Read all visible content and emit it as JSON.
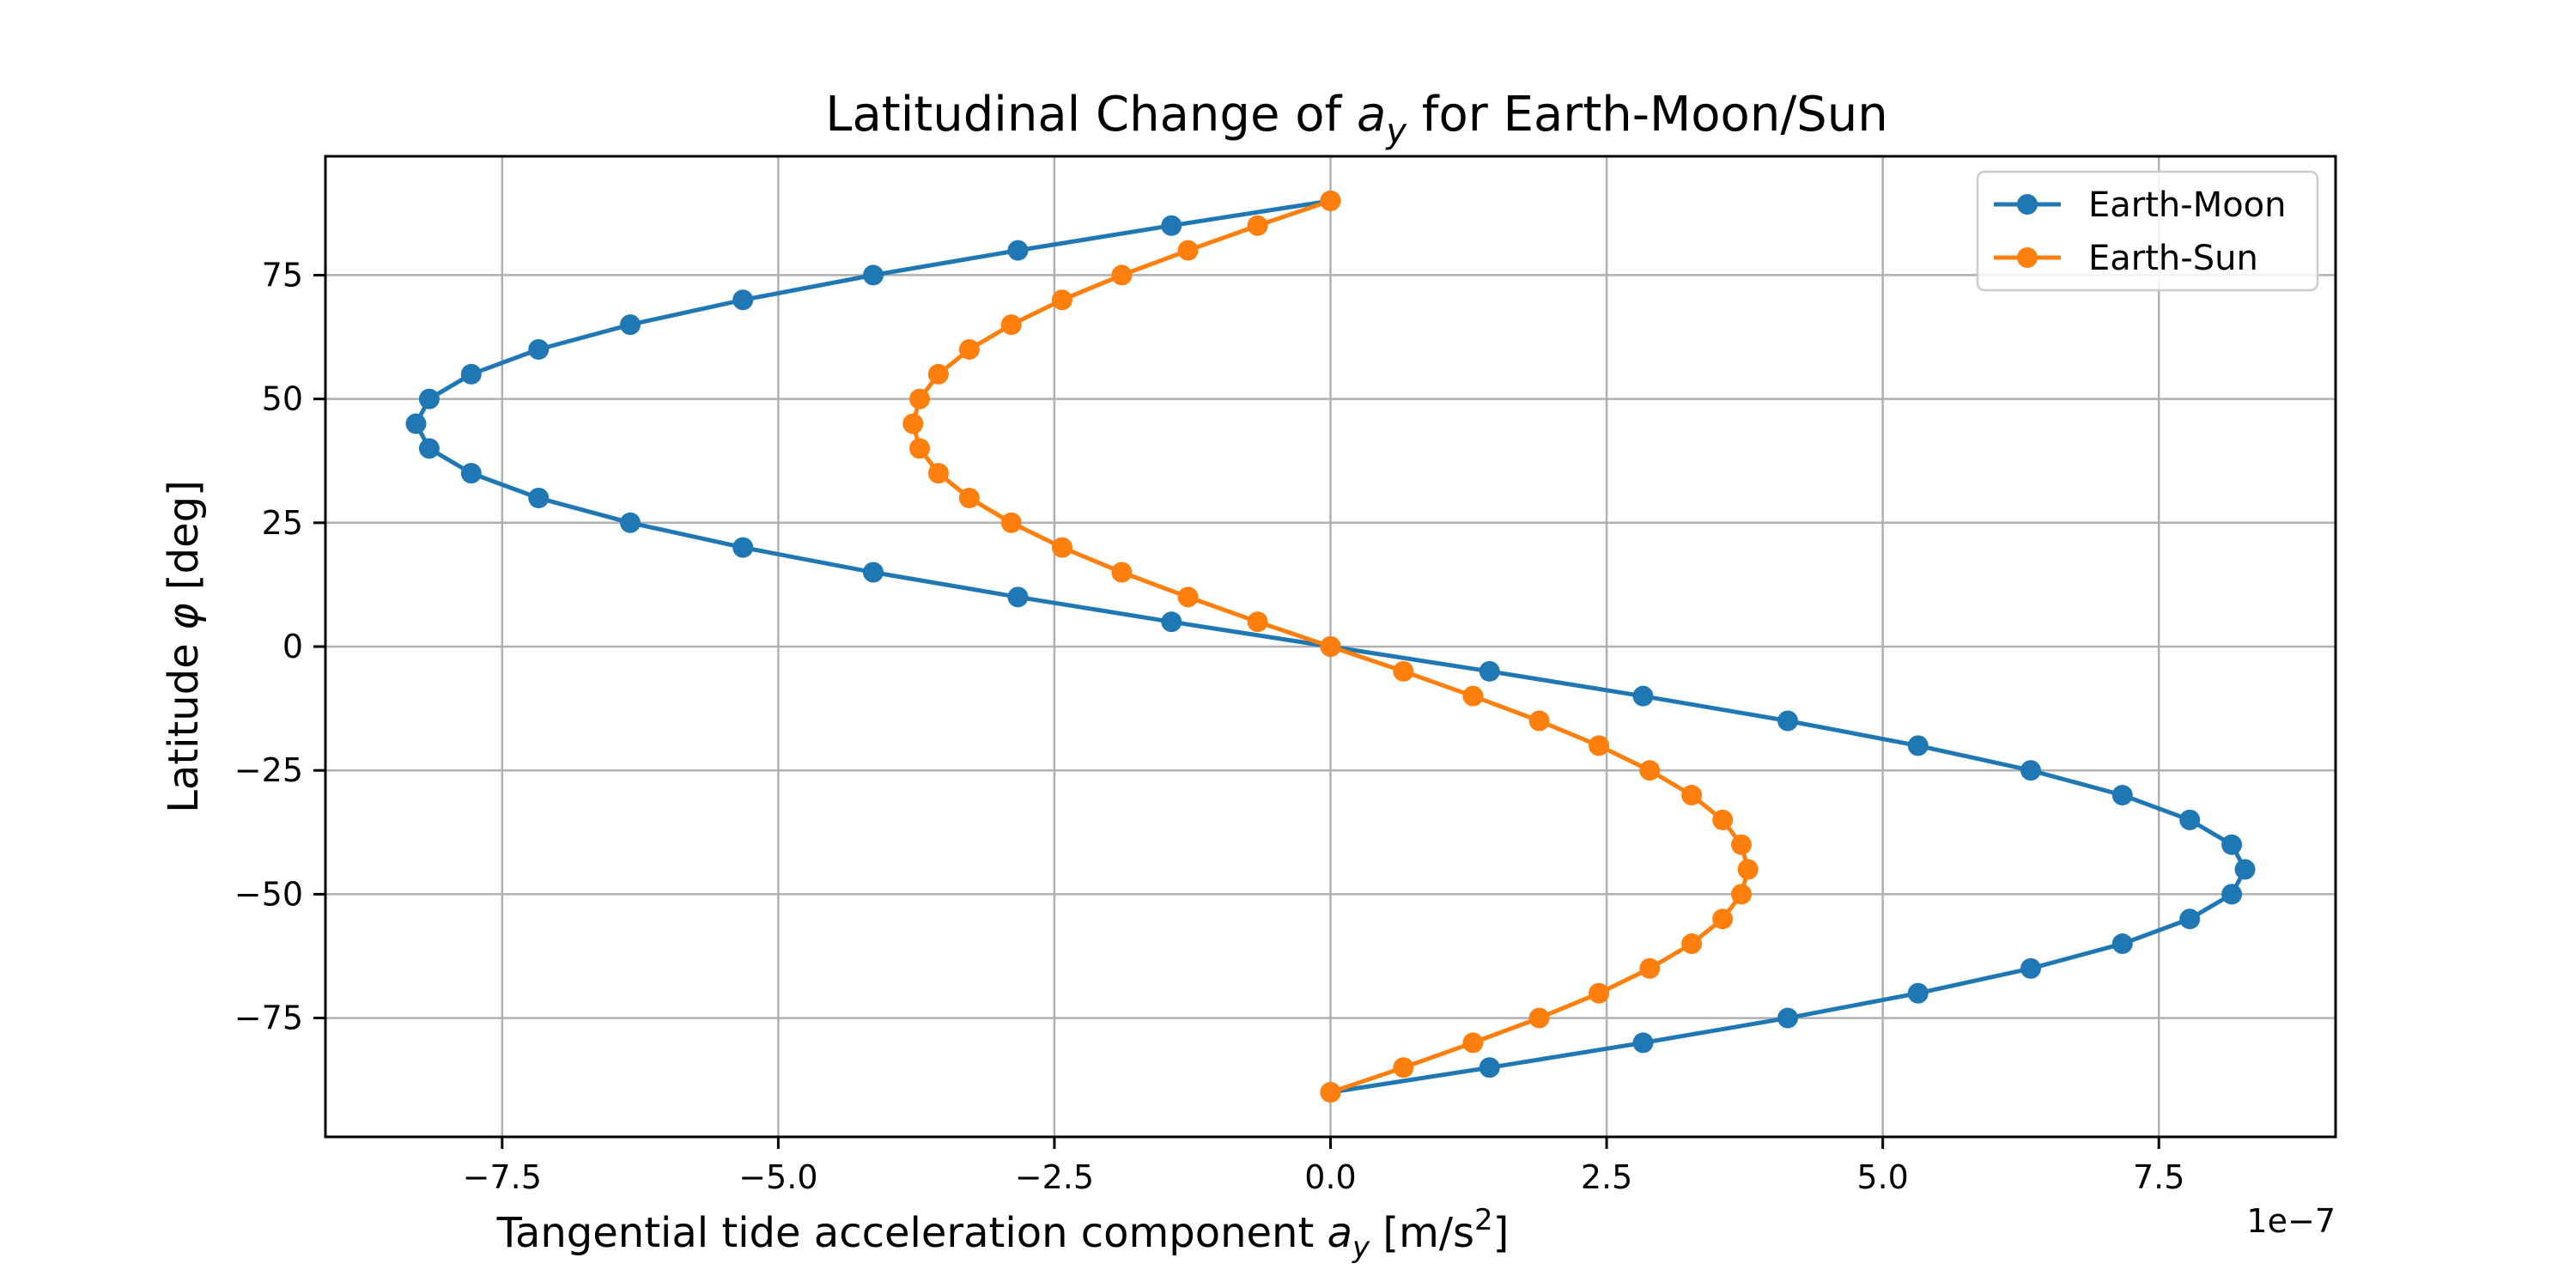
{
  "chart_data": {
    "type": "line",
    "title_text": "Latitudinal Change of ",
    "title_var": "a",
    "title_sub": "y",
    "title_tail": " for Earth-Moon/Sun",
    "xlabel_text": "Tangential tide acceleration component ",
    "xlabel_var": "a",
    "xlabel_sub": "y",
    "xlabel_unit": " [m/s",
    "xlabel_sup": "2",
    "xlabel_close": "]",
    "ylabel_text": "Latitude ",
    "ylabel_var": "φ",
    "ylabel_unit": " [deg]",
    "x_offset_label": "1e−7",
    "xlim": [
      -9.1,
      9.1
    ],
    "ylim": [
      -99,
      99
    ],
    "x_scale_note": "x values in units of 1e-7 m/s^2",
    "xticks": [
      -7.5,
      -5.0,
      -2.5,
      0.0,
      2.5,
      5.0,
      7.5
    ],
    "xtick_labels": [
      "−7.5",
      "−5.0",
      "−2.5",
      "0.0",
      "2.5",
      "5.0",
      "7.5"
    ],
    "yticks": [
      75,
      50,
      25,
      0,
      -25,
      -50,
      -75
    ],
    "ytick_labels": [
      "75",
      "50",
      "25",
      "0",
      "−25",
      "−50",
      "−75"
    ],
    "grid": true,
    "legend_position": "upper right",
    "latitudes": [
      90,
      85,
      80,
      75,
      70,
      65,
      60,
      55,
      50,
      45,
      40,
      35,
      30,
      25,
      20,
      15,
      10,
      5,
      0,
      -5,
      -10,
      -15,
      -20,
      -25,
      -30,
      -35,
      -40,
      -45,
      -50,
      -55,
      -60,
      -65,
      -70,
      -75,
      -80,
      -85,
      -90
    ],
    "series": [
      {
        "name": "Earth-Moon",
        "color": "#1f77b4",
        "values": [
          0,
          -1.44,
          -2.83,
          -4.14,
          -5.32,
          -6.34,
          -7.17,
          -7.78,
          -8.16,
          -8.28,
          -8.16,
          -7.78,
          -7.17,
          -6.34,
          -5.32,
          -4.14,
          -2.83,
          -1.44,
          0,
          1.44,
          2.83,
          4.14,
          5.32,
          6.34,
          7.17,
          7.78,
          8.16,
          8.28,
          8.16,
          7.78,
          7.17,
          6.34,
          5.32,
          4.14,
          2.83,
          1.44,
          0
        ]
      },
      {
        "name": "Earth-Sun",
        "color": "#ff7f0e",
        "values": [
          0,
          -0.66,
          -1.29,
          -1.89,
          -2.43,
          -2.89,
          -3.27,
          -3.55,
          -3.72,
          -3.78,
          -3.72,
          -3.55,
          -3.27,
          -2.89,
          -2.43,
          -1.89,
          -1.29,
          -0.66,
          0,
          0.66,
          1.29,
          1.89,
          2.43,
          2.89,
          3.27,
          3.55,
          3.72,
          3.78,
          3.72,
          3.55,
          3.27,
          2.89,
          2.43,
          1.89,
          1.29,
          0.66,
          0
        ]
      }
    ]
  }
}
